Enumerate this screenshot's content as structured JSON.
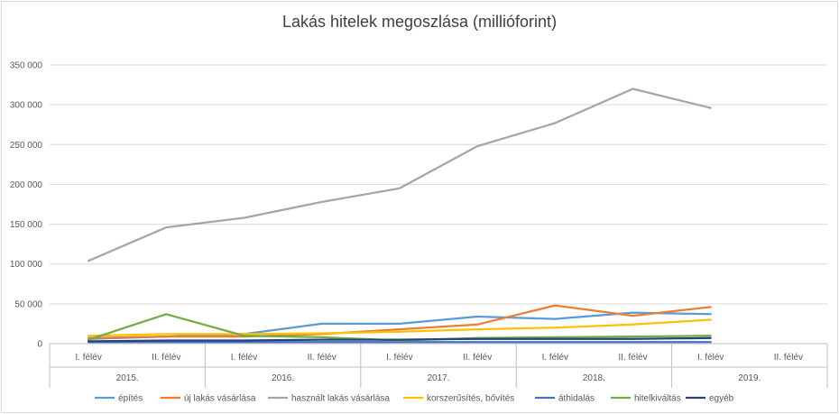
{
  "chart_data": {
    "type": "line",
    "title": "Lakás hitelek megoszlása (millióforint)",
    "xlabel": "",
    "ylabel": "",
    "ylim": [
      0,
      350000
    ],
    "y_ticks": [
      "0",
      "50 000",
      "100 000",
      "150 000",
      "200 000",
      "250 000",
      "300 000",
      "350 000"
    ],
    "y_tick_values": [
      0,
      50000,
      100000,
      150000,
      200000,
      250000,
      300000,
      350000
    ],
    "categories": [
      "I. félév",
      "II. félév",
      "I. félév",
      "II. félév",
      "I. félév",
      "II. félév",
      "I. félév",
      "II. félév",
      "I. félév",
      "II. félév"
    ],
    "groups": [
      "2015.",
      "2016.",
      "2017.",
      "2018.",
      "2019."
    ],
    "grid": true,
    "legend_position": "bottom",
    "series": [
      {
        "name": "építés",
        "color": "#5b9bd5",
        "values": [
          6000,
          9000,
          12000,
          25000,
          25000,
          34000,
          31000,
          39000,
          37000,
          null
        ]
      },
      {
        "name": "új lakás vásárlása",
        "color": "#ed7d31",
        "values": [
          7000,
          9000,
          9000,
          12000,
          18000,
          24000,
          48000,
          35000,
          46000,
          null
        ]
      },
      {
        "name": "használt lakás vásárlása",
        "color": "#a5a5a5",
        "values": [
          104000,
          146000,
          158000,
          178000,
          195000,
          248000,
          277000,
          320000,
          296000,
          null
        ]
      },
      {
        "name": "korszerűsítés, bővítés",
        "color": "#ffc000",
        "values": [
          10000,
          12000,
          12000,
          13000,
          15000,
          18000,
          20000,
          24000,
          30000,
          null
        ]
      },
      {
        "name": "áthidalás",
        "color": "#4472c4",
        "values": [
          2000,
          2000,
          2000,
          2000,
          2000,
          2000,
          2000,
          2000,
          2000,
          null
        ]
      },
      {
        "name": "hitelkiváltás",
        "color": "#70ad47",
        "values": [
          5000,
          37000,
          10000,
          8000,
          4000,
          7000,
          8000,
          9000,
          10000,
          null
        ]
      },
      {
        "name": "egyéb",
        "color": "#264478",
        "values": [
          3000,
          4000,
          4000,
          5000,
          5000,
          6000,
          6000,
          6000,
          7000,
          null
        ]
      }
    ]
  }
}
